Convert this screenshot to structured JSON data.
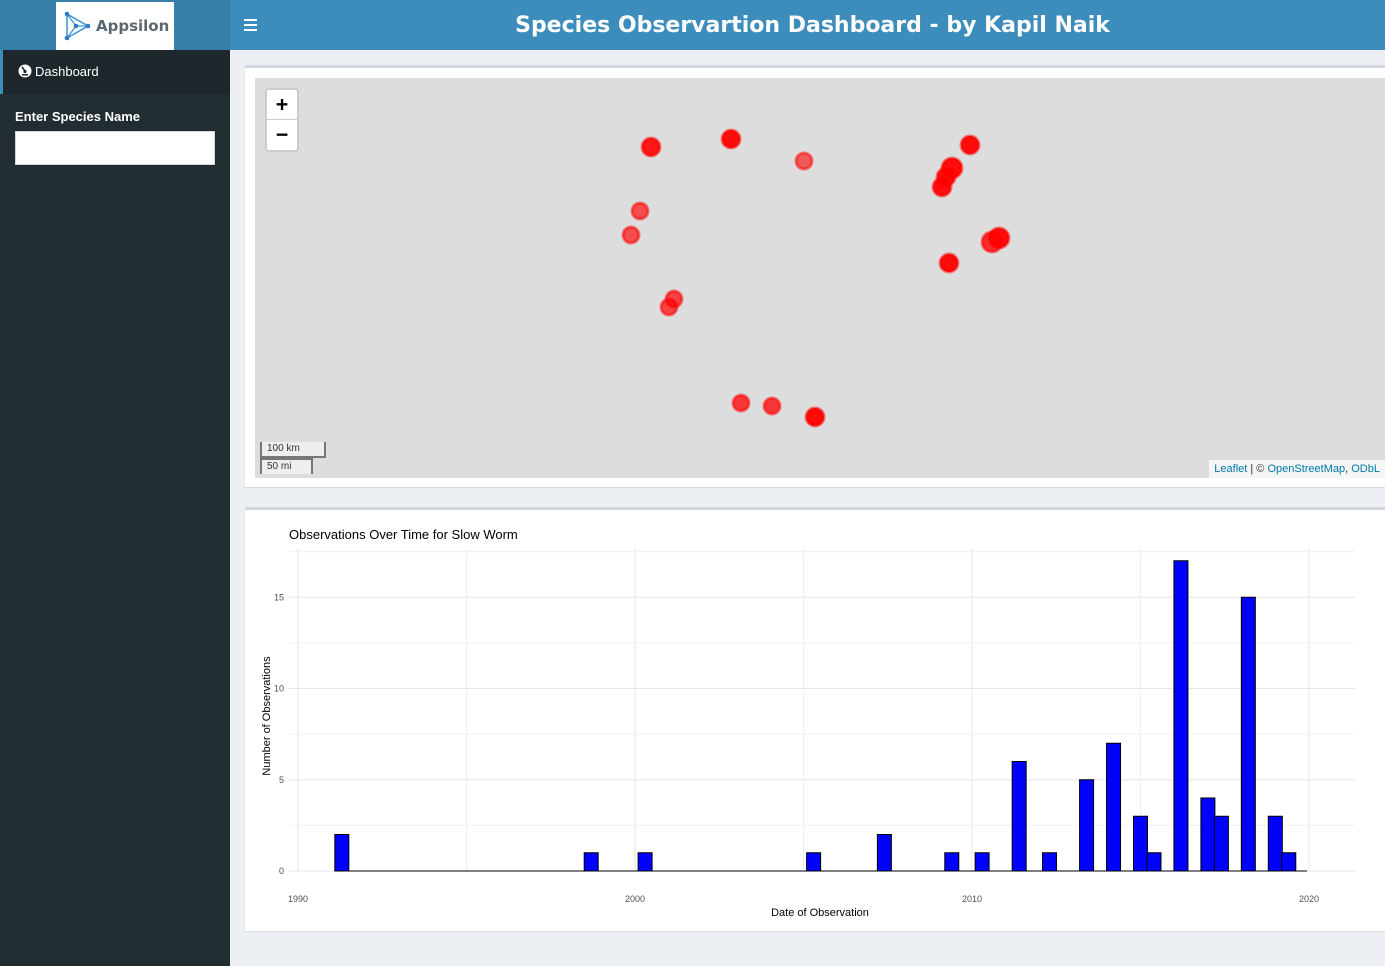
{
  "header": {
    "logo_text": "Appsilon",
    "title": "Species Observartion Dashboard - by Kapil Naik",
    "toggle_icon": "hamburger-icon"
  },
  "sidebar": {
    "menu": [
      {
        "label": "Dashboard",
        "icon": "dashboard-icon"
      }
    ],
    "species_input": {
      "label": "Enter Species Name",
      "value": "",
      "placeholder": ""
    }
  },
  "map": {
    "zoom_in": "+",
    "zoom_out": "−",
    "scale_km": "100 km",
    "scale_mi": "50 mi",
    "attribution_leaflet": "Leaflet",
    "attribution_sep": " | © ",
    "attribution_osm": "OpenStreetMap",
    "attribution_sep2": ", ",
    "attribution_odbl": "ODbL",
    "marker_color": "#ff0000"
  },
  "chart_data": {
    "type": "bar",
    "title": "Observations Over Time for Slow Worm",
    "xlabel": "Date of Observation",
    "ylabel": "Number of Observations",
    "x_ticks": [
      "1990",
      "2000",
      "2010",
      "2020"
    ],
    "y_ticks": [
      "0",
      "5",
      "10",
      "15"
    ],
    "xlim": [
      1990,
      2020
    ],
    "ylim": [
      0,
      17
    ],
    "bar_color": "#0000ff",
    "grid": true,
    "x": [
      1991.3,
      1998.7,
      2000.3,
      2005.3,
      2007.4,
      2009.4,
      2010.3,
      2011.4,
      2012.3,
      2013.4,
      2014.2,
      2015.0,
      2015.4,
      2016.2,
      2017.0,
      2017.4,
      2018.2,
      2019.0,
      2019.4
    ],
    "values": [
      2,
      1,
      1,
      1,
      2,
      1,
      1,
      6,
      1,
      5,
      7,
      3,
      1,
      17,
      4,
      3,
      15,
      3,
      1
    ]
  }
}
